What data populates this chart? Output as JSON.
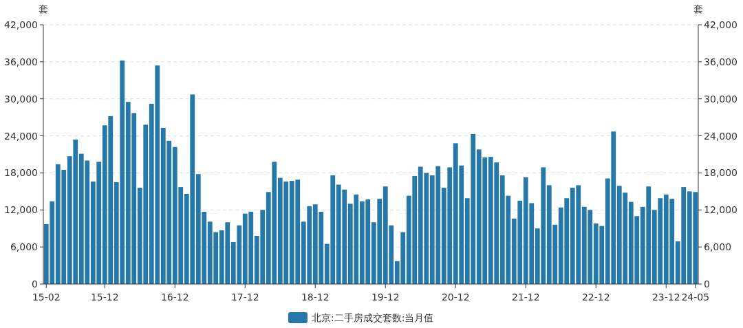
{
  "chart_data": {
    "type": "bar",
    "ylabel": "套",
    "y2label": "套",
    "categories": [
      "15-02",
      null,
      null,
      null,
      null,
      null,
      null,
      null,
      null,
      null,
      "15-12",
      null,
      null,
      null,
      null,
      null,
      null,
      null,
      null,
      null,
      null,
      null,
      "16-12",
      null,
      null,
      null,
      null,
      null,
      null,
      null,
      null,
      null,
      null,
      null,
      "17-12",
      null,
      null,
      null,
      null,
      null,
      null,
      null,
      null,
      null,
      null,
      null,
      "18-12",
      null,
      null,
      null,
      null,
      null,
      null,
      null,
      null,
      null,
      null,
      null,
      "19-12",
      null,
      null,
      null,
      null,
      null,
      null,
      null,
      null,
      null,
      null,
      null,
      "20-12",
      null,
      null,
      null,
      null,
      null,
      null,
      null,
      null,
      null,
      null,
      null,
      "21-12",
      null,
      null,
      null,
      null,
      null,
      null,
      null,
      null,
      null,
      null,
      null,
      "22-12",
      null,
      null,
      null,
      null,
      null,
      null,
      null,
      null,
      null,
      null,
      null,
      "23-12",
      null,
      null,
      null,
      null,
      "24-05"
    ],
    "series": [
      {
        "name": "北京:二手房成交套数:当月值",
        "color": "#2578a8",
        "values": [
          9700,
          13400,
          19400,
          18500,
          20700,
          23400,
          21100,
          20000,
          16600,
          19800,
          25700,
          27200,
          16500,
          36200,
          29500,
          27700,
          15600,
          25800,
          29200,
          35400,
          25300,
          23200,
          22200,
          15700,
          14600,
          30700,
          17800,
          11700,
          10100,
          8400,
          8700,
          10000,
          6800,
          9500,
          11400,
          11700,
          7800,
          12000,
          14900,
          19800,
          17200,
          16600,
          16700,
          16900,
          10100,
          12600,
          12900,
          11700,
          6500,
          17600,
          16100,
          15300,
          13000,
          14500,
          13400,
          13700,
          10000,
          13800,
          15800,
          9500,
          3700,
          8400,
          14300,
          17500,
          19000,
          18000,
          17600,
          19100,
          15600,
          18900,
          22800,
          19200,
          13900,
          24300,
          21800,
          20500,
          20600,
          19700,
          17600,
          14300,
          10600,
          13500,
          17300,
          13100,
          9000,
          18900,
          16000,
          9600,
          12400,
          13900,
          15600,
          16000,
          12500,
          12000,
          9800,
          9400,
          17100,
          24700,
          15900,
          14800,
          13300,
          11000,
          12500,
          15800,
          12000,
          13900,
          14500,
          13800,
          6900,
          15700,
          15000,
          14900
        ]
      }
    ],
    "ylim": [
      0,
      42000
    ],
    "yticks": [
      0,
      {
        "value": 6000,
        "label": "6,000"
      },
      {
        "value": 12000,
        "label": "12,000"
      },
      {
        "value": 18000,
        "label": "18,000"
      },
      {
        "value": 24000,
        "label": "24,000"
      },
      {
        "value": 30000,
        "label": "30,000"
      },
      {
        "value": 36000,
        "label": "36,000"
      },
      {
        "value": 42000,
        "label": "42,000"
      }
    ],
    "y2lim": [
      0,
      42000
    ],
    "y2ticks": [
      0,
      {
        "value": 6000,
        "label": "6,000"
      },
      {
        "value": 12000,
        "label": "12,000"
      },
      {
        "value": 18000,
        "label": "18,000"
      },
      {
        "value": 24000,
        "label": "24,000"
      },
      {
        "value": 30000,
        "label": "30,000"
      },
      {
        "value": 36000,
        "label": "36,000"
      },
      {
        "value": 42000,
        "label": "42,000"
      }
    ],
    "grid": "y",
    "legend": "bottom"
  }
}
